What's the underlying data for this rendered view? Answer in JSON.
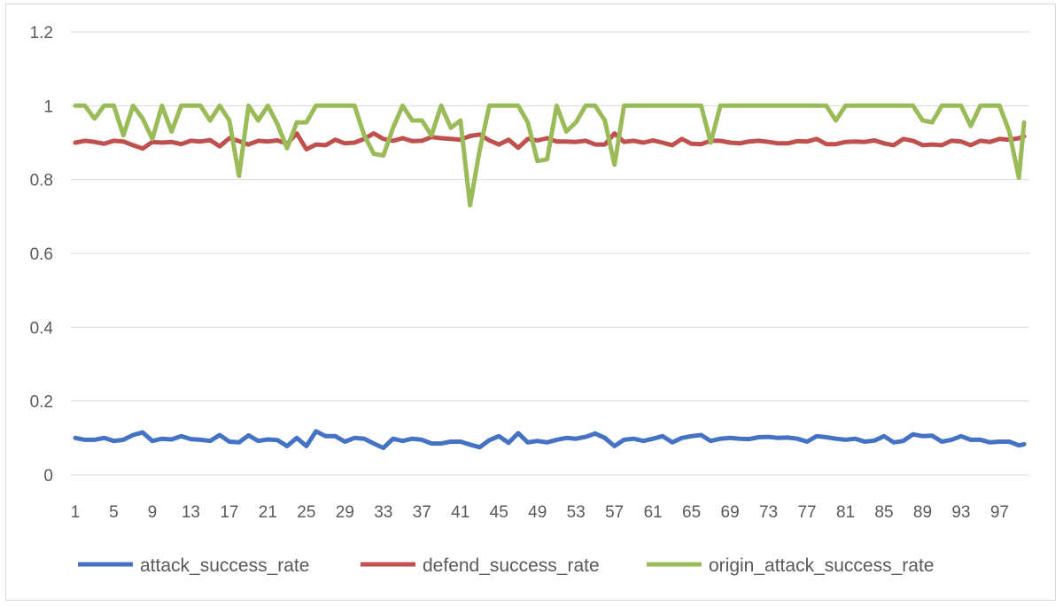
{
  "chart_data": {
    "type": "line",
    "title": "",
    "xlabel": "",
    "ylabel": "",
    "ylim": [
      0,
      1.2
    ],
    "yticks": [
      "0",
      "0.2",
      "0.4",
      "0.6",
      "0.8",
      "1",
      "1.2"
    ],
    "x_tick_labels": [
      "1",
      "5",
      "9",
      "13",
      "17",
      "21",
      "25",
      "29",
      "33",
      "37",
      "41",
      "45",
      "49",
      "53",
      "57",
      "61",
      "65",
      "69",
      "73",
      "77",
      "81",
      "85",
      "89",
      "93",
      "97"
    ],
    "grid": "horizontal",
    "legend_position": "bottom",
    "series": [
      {
        "name": "attack_success_rate",
        "color": "#4472c4",
        "values": [
          0.1,
          0.095,
          0.095,
          0.1,
          0.092,
          0.095,
          0.108,
          0.115,
          0.092,
          0.098,
          0.096,
          0.105,
          0.097,
          0.095,
          0.092,
          0.108,
          0.09,
          0.088,
          0.107,
          0.092,
          0.096,
          0.094,
          0.078,
          0.1,
          0.078,
          0.118,
          0.105,
          0.105,
          0.09,
          0.1,
          0.098,
          0.085,
          0.073,
          0.098,
          0.092,
          0.098,
          0.095,
          0.085,
          0.085,
          0.09,
          0.09,
          0.082,
          0.075,
          0.094,
          0.105,
          0.087,
          0.113,
          0.088,
          0.092,
          0.088,
          0.095,
          0.1,
          0.098,
          0.103,
          0.112,
          0.1,
          0.078,
          0.095,
          0.098,
          0.092,
          0.098,
          0.105,
          0.088,
          0.1,
          0.105,
          0.108,
          0.092,
          0.098,
          0.1,
          0.098,
          0.097,
          0.102,
          0.103,
          0.1,
          0.101,
          0.098,
          0.09,
          0.105,
          0.102,
          0.098,
          0.095,
          0.098,
          0.09,
          0.093,
          0.105,
          0.088,
          0.092,
          0.11,
          0.105,
          0.106,
          0.09,
          0.095,
          0.105,
          0.095,
          0.095,
          0.088,
          0.09,
          0.09,
          0.08
        ],
        "endpoint": 0.083
      },
      {
        "name": "defend_success_rate",
        "color": "#c0504d",
        "values": [
          0.9,
          0.905,
          0.902,
          0.897,
          0.905,
          0.903,
          0.893,
          0.884,
          0.902,
          0.9,
          0.902,
          0.896,
          0.905,
          0.903,
          0.907,
          0.89,
          0.912,
          0.904,
          0.895,
          0.905,
          0.903,
          0.906,
          0.897,
          0.925,
          0.882,
          0.895,
          0.893,
          0.908,
          0.898,
          0.9,
          0.91,
          0.925,
          0.91,
          0.905,
          0.912,
          0.904,
          0.905,
          0.915,
          0.912,
          0.91,
          0.908,
          0.918,
          0.922,
          0.906,
          0.895,
          0.908,
          0.886,
          0.91,
          0.906,
          0.912,
          0.903,
          0.903,
          0.902,
          0.905,
          0.895,
          0.895,
          0.925,
          0.902,
          0.905,
          0.9,
          0.906,
          0.9,
          0.893,
          0.91,
          0.897,
          0.896,
          0.905,
          0.905,
          0.9,
          0.898,
          0.903,
          0.905,
          0.902,
          0.898,
          0.898,
          0.904,
          0.903,
          0.91,
          0.896,
          0.896,
          0.902,
          0.903,
          0.902,
          0.906,
          0.898,
          0.893,
          0.91,
          0.905,
          0.893,
          0.895,
          0.893,
          0.905,
          0.903,
          0.893,
          0.905,
          0.902,
          0.91,
          0.908,
          0.912
        ],
        "endpoint": 0.917
      },
      {
        "name": "origin_attack_success_rate",
        "color": "#9bbb59",
        "values": [
          1.0,
          1.0,
          0.965,
          1.0,
          1.0,
          0.92,
          1.0,
          0.965,
          0.91,
          1.0,
          0.93,
          1.0,
          1.0,
          1.0,
          0.96,
          1.0,
          0.96,
          0.81,
          1.0,
          0.96,
          1.0,
          0.95,
          0.885,
          0.955,
          0.955,
          1.0,
          1.0,
          1.0,
          1.0,
          1.0,
          0.92,
          0.87,
          0.865,
          0.94,
          1.0,
          0.96,
          0.96,
          0.92,
          1.0,
          0.94,
          0.96,
          0.73,
          0.88,
          1.0,
          1.0,
          1.0,
          1.0,
          0.955,
          0.85,
          0.855,
          1.0,
          0.93,
          0.955,
          1.0,
          1.0,
          0.96,
          0.84,
          1.0,
          1.0,
          1.0,
          1.0,
          1.0,
          1.0,
          1.0,
          1.0,
          1.0,
          0.9,
          1.0,
          1.0,
          1.0,
          1.0,
          1.0,
          1.0,
          1.0,
          1.0,
          1.0,
          1.0,
          1.0,
          1.0,
          0.96,
          1.0,
          1.0,
          1.0,
          1.0,
          1.0,
          1.0,
          1.0,
          1.0,
          0.96,
          0.955,
          1.0,
          1.0,
          1.0,
          0.945,
          1.0,
          1.0,
          1.0,
          0.93,
          0.805
        ],
        "endpoint": 0.955
      }
    ]
  }
}
